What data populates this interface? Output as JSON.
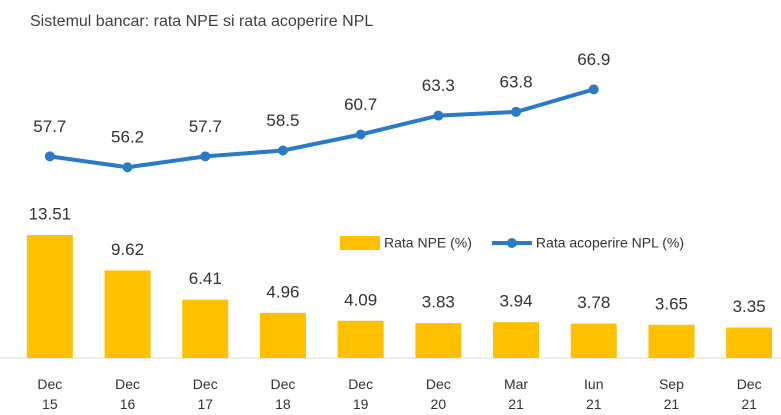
{
  "chart_data": {
    "type": "bar_line",
    "title": "Sistemul bancar: rata NPE si rata acoperire NPL",
    "categories": [
      "Dec\n15",
      "Dec\n16",
      "Dec\n17",
      "Dec\n18",
      "Dec\n19",
      "Dec\n20",
      "Mar\n21",
      "Iun\n21",
      "Sep\n21",
      "Dec\n21"
    ],
    "series": [
      {
        "name": "Rata NPE (%)",
        "color": "#ffc000",
        "type": "bar",
        "values": [
          13.51,
          9.62,
          6.41,
          4.96,
          4.09,
          3.83,
          3.94,
          3.78,
          3.65,
          3.35
        ]
      },
      {
        "name": "Rata acoperire NPL (%)",
        "color": "#2a7ac6",
        "type": "line",
        "axis": "y2",
        "values": [
          57.7,
          56.2,
          57.7,
          58.5,
          60.7,
          63.3,
          63.8,
          66.9,
          null,
          null
        ]
      }
    ],
    "ylim": [
      0,
      40
    ],
    "y2lim": [
      30,
      80
    ]
  }
}
